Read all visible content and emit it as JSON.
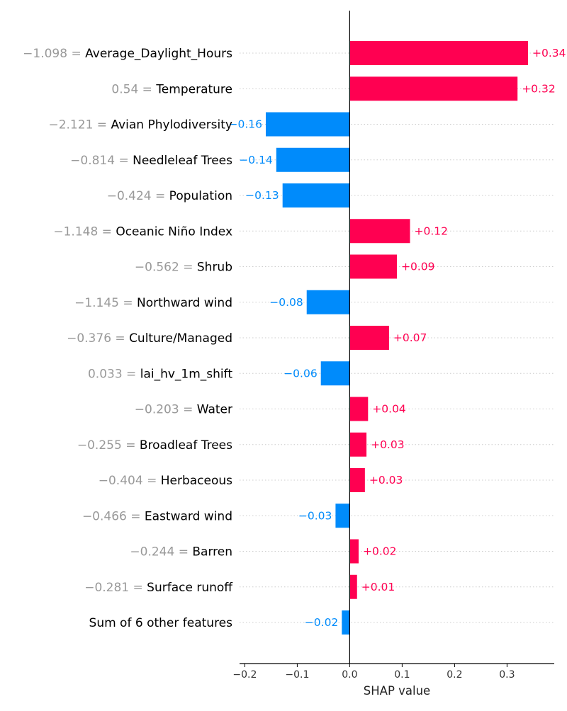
{
  "colors": {
    "positive": "#ff0051",
    "negative": "#008bfb",
    "feature_value": "#999999",
    "feature_name": "#000000",
    "gridline": "#cccccc",
    "axis": "#000000"
  },
  "chart_data": {
    "type": "bar",
    "orientation": "horizontal",
    "xlabel": "SHAP value",
    "xlim": [
      -0.21,
      0.39
    ],
    "xticks": [
      -0.2,
      -0.1,
      0.0,
      0.1,
      0.2,
      0.3
    ],
    "xtick_labels": [
      "−0.2",
      "−0.1",
      "0.0",
      "0.1",
      "0.2",
      "0.3"
    ],
    "grid": "dotted horizontal row lines",
    "bars": [
      {
        "feature_value": "−1.098 = ",
        "feature": "Average_Daylight_Hours",
        "value": 0.34,
        "label": "+0.34"
      },
      {
        "feature_value": "0.54 = ",
        "feature": "Temperature",
        "value": 0.32,
        "label": "+0.32"
      },
      {
        "feature_value": "−2.121 = ",
        "feature": "Avian Phylodiversity",
        "value": -0.16,
        "label": "−0.16"
      },
      {
        "feature_value": "−0.814 = ",
        "feature": "Needleleaf Trees",
        "value": -0.14,
        "label": "−0.14"
      },
      {
        "feature_value": "−0.424 = ",
        "feature": "Population",
        "value": -0.128,
        "label": "−0.13"
      },
      {
        "feature_value": "−1.148 = ",
        "feature": "Oceanic Niño Index",
        "value": 0.115,
        "label": "+0.12"
      },
      {
        "feature_value": "−0.562 = ",
        "feature": "Shrub",
        "value": 0.09,
        "label": "+0.09"
      },
      {
        "feature_value": "−1.145 = ",
        "feature": "Northward wind",
        "value": -0.082,
        "label": "−0.08"
      },
      {
        "feature_value": "−0.376 = ",
        "feature": "Culture/Managed",
        "value": 0.075,
        "label": "+0.07"
      },
      {
        "feature_value": "0.033 = ",
        "feature": "lai_hv_1m_shift",
        "value": -0.055,
        "label": "−0.06"
      },
      {
        "feature_value": "−0.203 = ",
        "feature": "Water",
        "value": 0.035,
        "label": "+0.04"
      },
      {
        "feature_value": "−0.255 = ",
        "feature": "Broadleaf Trees",
        "value": 0.032,
        "label": "+0.03"
      },
      {
        "feature_value": "−0.404 = ",
        "feature": "Herbaceous",
        "value": 0.029,
        "label": "+0.03"
      },
      {
        "feature_value": "−0.466 = ",
        "feature": "Eastward wind",
        "value": -0.027,
        "label": "−0.03"
      },
      {
        "feature_value": "−0.244 = ",
        "feature": "Barren",
        "value": 0.017,
        "label": "+0.02"
      },
      {
        "feature_value": "−0.281 = ",
        "feature": "Surface runoff",
        "value": 0.014,
        "label": "+0.01"
      },
      {
        "feature_value": "",
        "feature": "Sum of 6 other features",
        "value": -0.015,
        "label": "−0.02"
      }
    ]
  }
}
